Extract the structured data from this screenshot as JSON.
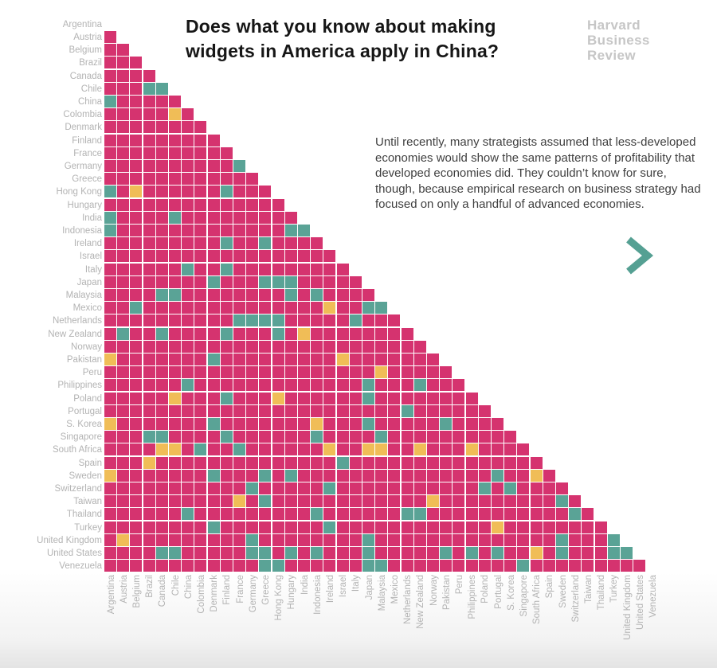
{
  "header": {
    "title_line1": "Does what you know about making",
    "title_line2": "widgets in America apply in China?",
    "logo_line1": "Harvard",
    "logo_line2": "Business",
    "logo_line3": "Review"
  },
  "intro_text": "Until recently, many strategists assumed that less-developed economies would show the same patterns of profitability that developed economies did. They couldn’t know for sure, though, because empirical research on business strategy had focused on only a handful of advanced economies.",
  "next_arrow": {
    "symbol": "chevron-right",
    "color": "#55a093"
  },
  "colors": {
    "cell_pink": "#d5336f",
    "cell_teal": "#5aa396",
    "cell_yellow": "#f0bd57",
    "axis_label_gray": "#b3b3b3",
    "title_black": "#161616",
    "logo_gray": "#c6c6c6"
  },
  "chart_data": {
    "type": "heatmap",
    "title": "Does what you know about making widgets in America apply in China?",
    "layout": "lower-triangular country-pair matrix, no diagonal, no legend shown",
    "cell_colors": {
      "P": "#d5336f",
      "T": "#5aa396",
      "Y": "#f0bd57"
    },
    "x_categories": [
      "Argentina",
      "Austria",
      "Belgium",
      "Brazil",
      "Canada",
      "Chile",
      "China",
      "Colombia",
      "Denmark",
      "Finland",
      "France",
      "Germany",
      "Greece",
      "Hong Kong",
      "Hungary",
      "India",
      "Indonesia",
      "Ireland",
      "Israel",
      "Italy",
      "Japan",
      "Malaysia",
      "Mexico",
      "Netherlands",
      "New Zealand",
      "Norway",
      "Pakistan",
      "Peru",
      "Philippines",
      "Poland",
      "Portugal",
      "S. Korea",
      "Singapore",
      "South Africa",
      "Spain",
      "Sweden",
      "Switzerland",
      "Taiwan",
      "Thailand",
      "Turkey",
      "United Kingdom",
      "United States",
      "Venezuela"
    ],
    "y_categories": [
      "Argentina",
      "Austria",
      "Belgium",
      "Brazil",
      "Canada",
      "Chile",
      "China",
      "Colombia",
      "Denmark",
      "Finland",
      "France",
      "Germany",
      "Greece",
      "Hong Kong",
      "Hungary",
      "India",
      "Indonesia",
      "Ireland",
      "Israel",
      "Italy",
      "Japan",
      "Malaysia",
      "Mexico",
      "Netherlands",
      "New Zealand",
      "Norway",
      "Pakistan",
      "Peru",
      "Philippines",
      "Poland",
      "Portugal",
      "S. Korea",
      "Singapore",
      "South Africa",
      "Spain",
      "Sweden",
      "Switzerland",
      "Taiwan",
      "Thailand",
      "Turkey",
      "United Kingdom",
      "United States",
      "Venezuela"
    ],
    "matrix": [
      {
        "country": "Argentina",
        "cells": ""
      },
      {
        "country": "Austria",
        "cells": "P"
      },
      {
        "country": "Belgium",
        "cells": "PP"
      },
      {
        "country": "Brazil",
        "cells": "PPP"
      },
      {
        "country": "Canada",
        "cells": "PPPP"
      },
      {
        "country": "Chile",
        "cells": "PPPTT"
      },
      {
        "country": "China",
        "cells": "TPPPPP"
      },
      {
        "country": "Colombia",
        "cells": "PPPPPYP"
      },
      {
        "country": "Denmark",
        "cells": "PPPPPPPP"
      },
      {
        "country": "Finland",
        "cells": "PPPPPPPPP"
      },
      {
        "country": "France",
        "cells": "PPPPPPPPPP"
      },
      {
        "country": "Germany",
        "cells": "PPPPPPPPPPT"
      },
      {
        "country": "Greece",
        "cells": "PPPPPPPPPPPP"
      },
      {
        "country": "Hong Kong",
        "cells": "TPYPPPPPPTPPP"
      },
      {
        "country": "Hungary",
        "cells": "PPPPPPPPPPPPPP"
      },
      {
        "country": "India",
        "cells": "TPPPPTPPPPPPPPP"
      },
      {
        "country": "Indonesia",
        "cells": "TPPPPPPPPPPPPPTT"
      },
      {
        "country": "Ireland",
        "cells": "PPPPPPPPPTPPTPPPP"
      },
      {
        "country": "Israel",
        "cells": "PPPPPPPPPPPPPPPPPP"
      },
      {
        "country": "Italy",
        "cells": "PPPPPPTPPTPPPPPPPPP"
      },
      {
        "country": "Japan",
        "cells": "PPPPPPPPTPPPTTTPPPPP"
      },
      {
        "country": "Malaysia",
        "cells": "PPPPTTPPPPPPPPTPTPPPP"
      },
      {
        "country": "Mexico",
        "cells": "PPTPPPPPPPPPPPPPPYPPTT"
      },
      {
        "country": "Netherlands",
        "cells": "PPPPPPPPPPTTTTPPPPPTPPP"
      },
      {
        "country": "New Zealand",
        "cells": "PTPPTPPPPTPPPTPYPPPPPPPP"
      },
      {
        "country": "Norway",
        "cells": "PPPPPPPPPPPPPPPPPPPPPPPPP"
      },
      {
        "country": "Pakistan",
        "cells": "YPPPPPPPTPPPPPPPPPYPPPPPPP"
      },
      {
        "country": "Peru",
        "cells": "PPPPPPPPPPPPPPPPPPPPPYPPPPP"
      },
      {
        "country": "Philippines",
        "cells": "PPPPPPTPPPPPPPPPPPPPTPPPTPPP"
      },
      {
        "country": "Poland",
        "cells": "PPPPPYPPPTPPPYPPPPPPTPPPPPPPP"
      },
      {
        "country": "Portugal",
        "cells": "PPPPPPPPPPPPPPPPPPPPPPPTPPPPPP"
      },
      {
        "country": "S. Korea",
        "cells": "YPPPPPPPTPPPPPPPYPPPTPPPPPTPPPP"
      },
      {
        "country": "Singapore",
        "cells": "PPPTTPPPPTPPPPPPTPPPPTPPPPPPPPPP"
      },
      {
        "country": "South Africa",
        "cells": "PPPPYYPTPPTPPPPPPYPPYYPPYPPPYPPPP"
      },
      {
        "country": "Spain",
        "cells": "PPPYPPPPPPPPPPPPPPTPPPPPPPPPPPPPPP"
      },
      {
        "country": "Sweden",
        "cells": "YPPPPPPPTPPPTPTPPPPPPPPPPPPPPPTPPYP"
      },
      {
        "country": "Switzerland",
        "cells": "PPPPPPPPPPPTPPPPPTPPPPPPPPPPPTPTPPPP"
      },
      {
        "country": "Taiwan",
        "cells": "PPPPPPPPPPYPTPPPPPPPPPPPPYPPPPPPPPPTP"
      },
      {
        "country": "Thailand",
        "cells": "PPPPPPTPPPPPPPPPTPPPPPPTTPPPPPPPPPPPTP"
      },
      {
        "country": "Turkey",
        "cells": "PPPPPPPPTPPPPPPPPTPPPPPPPPPPPPYPPPPPPPP"
      },
      {
        "country": "United Kingdom",
        "cells": "PYPPPPPPPPPTPPPPPPPPTPPPPPPPPPPPPPPTPPPT"
      },
      {
        "country": "United States",
        "cells": "PPPPTTPPPPPTTPTPTPPPTPPPPPTPTPTPPYPTPPPTT"
      },
      {
        "country": "Venezuela",
        "cells": "PPPPPPPPPPPPTTPPPPPPTTPPPPPPPPPPTPPPPPPPPP"
      }
    ]
  }
}
